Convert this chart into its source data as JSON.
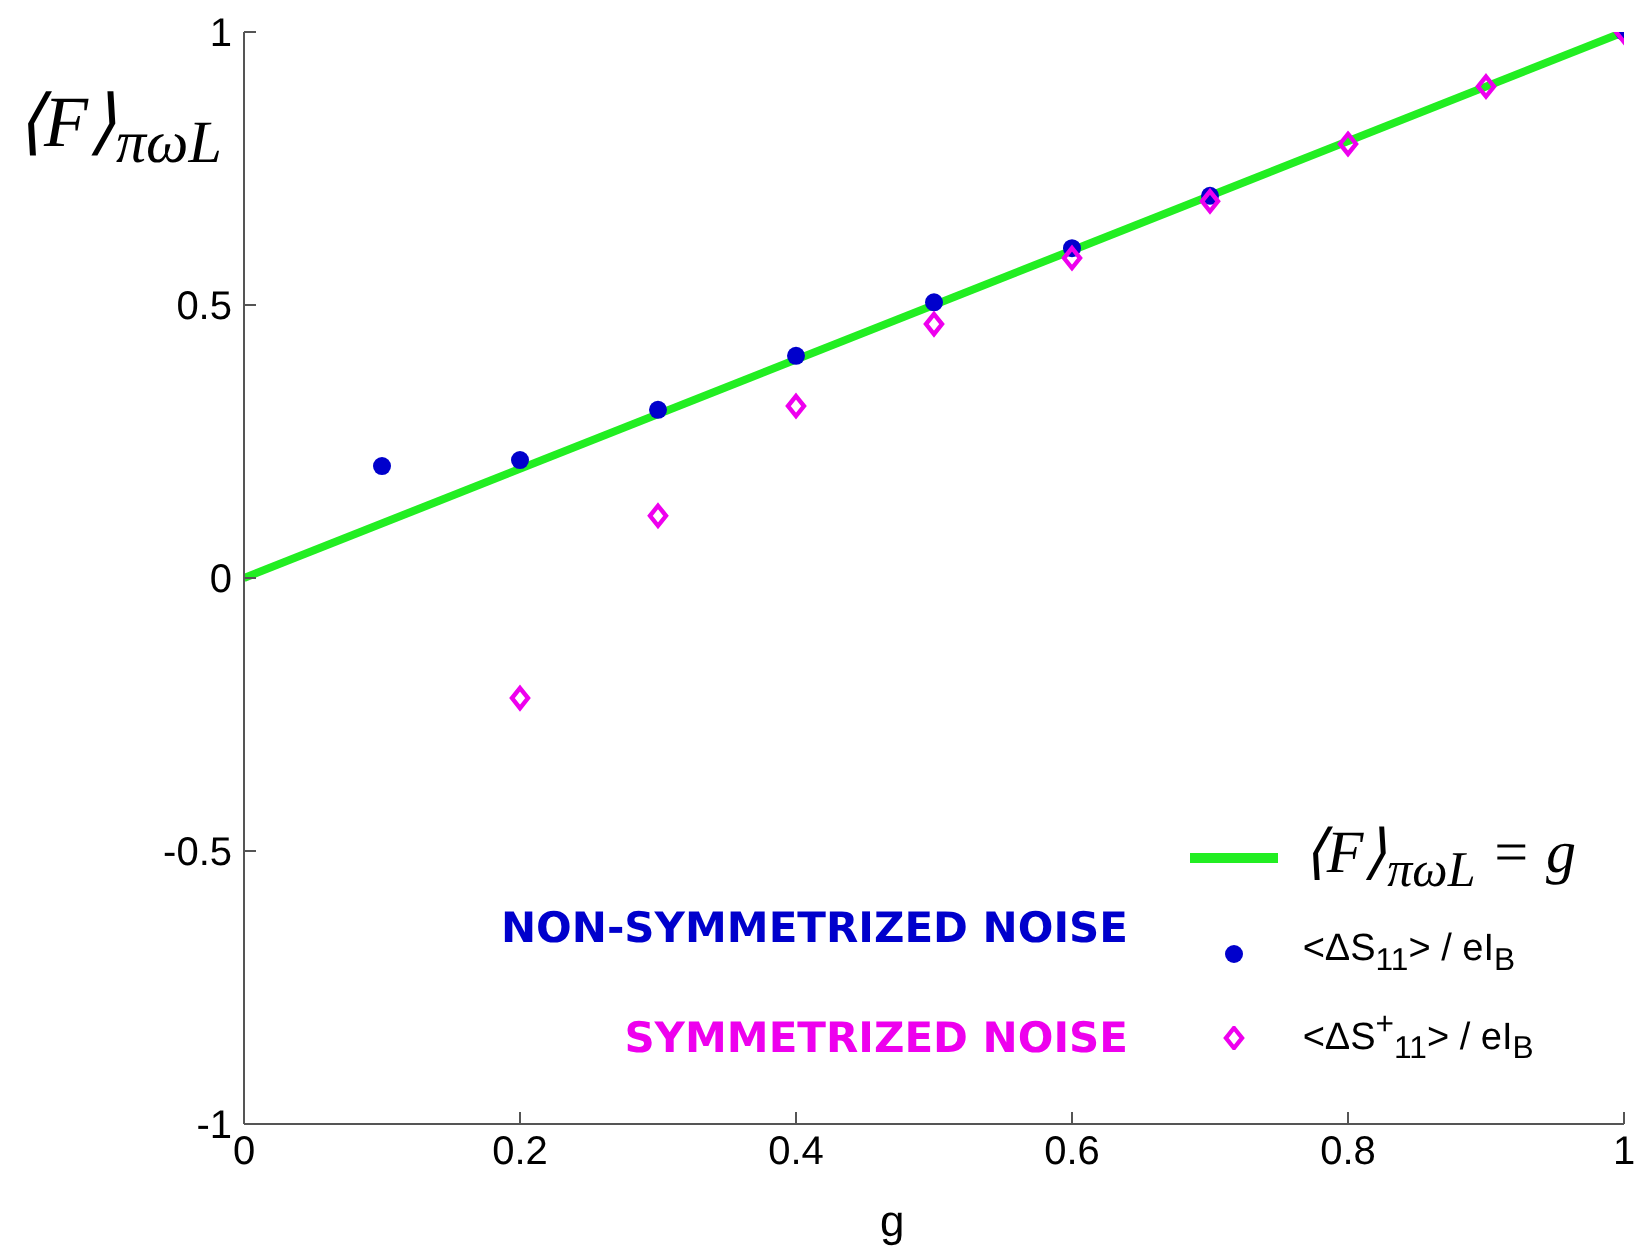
{
  "chart_data": {
    "type": "scatter",
    "xlabel": "g",
    "ylabel": "⟨F⟩$_{πωL}$",
    "xlim": [
      0,
      1
    ],
    "xticks": [
      0,
      0.2,
      0.4,
      0.6,
      0.8,
      1
    ],
    "ylim": [
      -1,
      1
    ],
    "yticks": [
      -1,
      -0.5,
      0,
      0.5,
      1
    ],
    "grid": false,
    "legend": "bottom right",
    "series": [
      {
        "name": "⟨F⟩$_{πωL}$ = g",
        "type": "line",
        "color": "#22ee22",
        "x": [
          0,
          1
        ],
        "values": [
          0,
          1
        ],
        "marker": "none",
        "line_style": "solid"
      },
      {
        "name": "<ΔS$_{11}$> / eI$_{B}$",
        "color": "#0000cc",
        "marker": "circle",
        "x": [
          0.1,
          0.2,
          0.3,
          0.4,
          0.5,
          0.6,
          0.7,
          0.8,
          0.9,
          1.0
        ],
        "values": [
          0.205,
          0.216,
          0.308,
          0.407,
          0.505,
          0.604,
          0.7,
          null,
          null,
          1.0
        ]
      },
      {
        "name": "<ΔS$^{+}$$_{11}$> / eI$_{B}$",
        "color": "#ee00ee",
        "marker": "diamond",
        "x": [
          0.2,
          0.3,
          0.4,
          0.5,
          0.6,
          0.7,
          0.8,
          0.9,
          1.0
        ],
        "values": [
          -0.22,
          0.114,
          0.315,
          0.465,
          0.586,
          0.69,
          0.795,
          0.9,
          1.0
        ]
      }
    ],
    "annotations": [
      "NON-SYMMETRIZED NOISE",
      "SYMMETRIZED NOISE"
    ]
  }
}
